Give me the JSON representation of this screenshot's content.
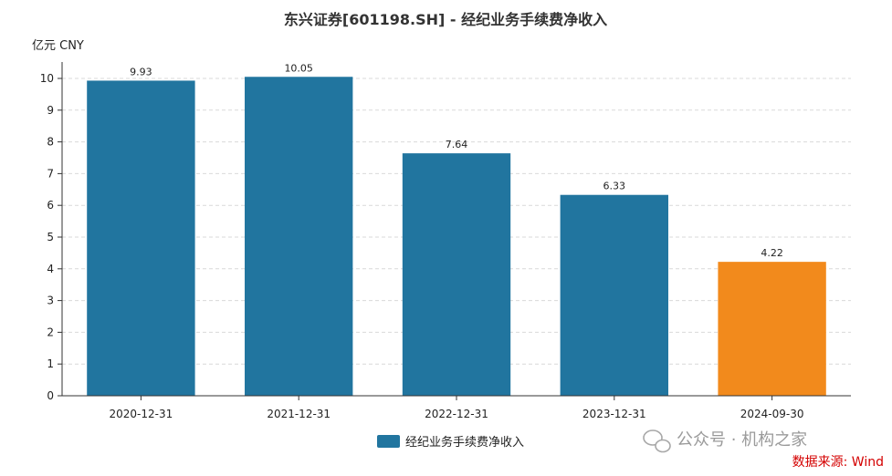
{
  "chart_data": {
    "type": "bar",
    "title": "东兴证券[601198.SH] - 经纪业务手续费净收入",
    "unit_label": "亿元  CNY",
    "categories": [
      "2020-12-31",
      "2021-12-31",
      "2022-12-31",
      "2023-12-31",
      "2024-09-30"
    ],
    "series": [
      {
        "name": "经纪业务手续费净收入",
        "values": [
          9.93,
          10.05,
          7.64,
          6.33,
          4.22
        ]
      }
    ],
    "data_labels": [
      "9.93",
      "10.05",
      "7.64",
      "6.33",
      "4.22"
    ],
    "ylim": [
      0,
      10
    ],
    "yticks": [
      "0",
      "1",
      "2",
      "3",
      "4",
      "5",
      "6",
      "7",
      "8",
      "9",
      "10"
    ],
    "grid": true,
    "legend_position": "bottom-center",
    "colors": {
      "bar": "#21759f",
      "highlight_bar": "#f28a1c",
      "grid": "#d9d9d9",
      "axis": "#333333"
    },
    "highlight_index": 4
  },
  "watermark": "公众号 · 机构之家",
  "source": "数据来源: Wind"
}
